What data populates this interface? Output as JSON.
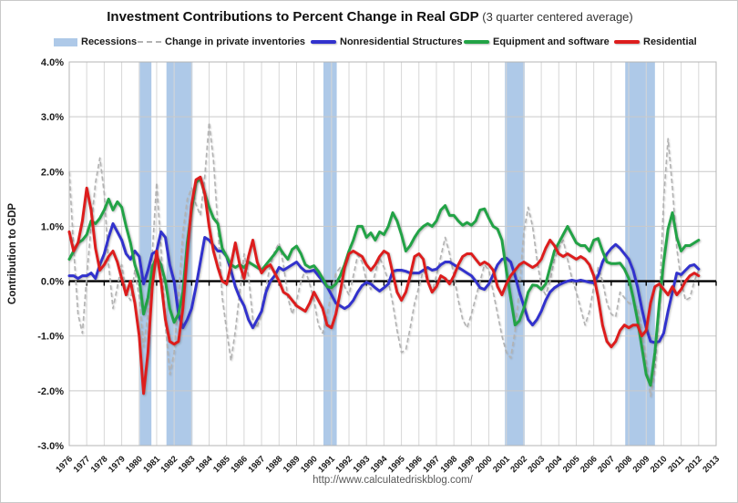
{
  "title": {
    "main": "Investment Contributions to Percent Change in Real GDP",
    "sub": " (3 quarter centered average)"
  },
  "footer": {
    "url": "http://www.calculatedriskblog.com/"
  },
  "colors": {
    "recession_band": "#aec9e8",
    "inventories": "#b3b3b3",
    "nonresidential": "#3232cd",
    "equipment": "#22a346",
    "residential": "#dd1d1d",
    "gridline": "#c9c9c9",
    "zero_line": "#000000"
  },
  "legend": [
    {
      "label": "Recessions",
      "type": "rect",
      "color": "#aec9e8"
    },
    {
      "label": "Change in private inventories",
      "type": "dash",
      "color": "#b3b3b3"
    },
    {
      "label": "Nonresidential Structures",
      "type": "line",
      "color": "#3232cd"
    },
    {
      "label": "Equipment and software",
      "type": "line",
      "color": "#22a346"
    },
    {
      "label": "Residential",
      "type": "line",
      "color": "#dd1d1d"
    }
  ],
  "chart_data": {
    "type": "line",
    "title": "Investment Contributions to Percent Change in Real GDP (3 quarter centered average)",
    "ylabel": "Contribution to GDP",
    "xlabel": "",
    "ylim": [
      -3,
      4
    ],
    "xlim": [
      1976,
      2013
    ],
    "grid": true,
    "legend_position": "top",
    "y_tick_labels": [
      "4.0%",
      "3.0%",
      "2.0%",
      "1.0%",
      "0.0%",
      "-1.0%",
      "-2.0%",
      "-3.0%"
    ],
    "y_tick_values": [
      4,
      3,
      2,
      1,
      0,
      -1,
      -2,
      -3
    ],
    "x_tick_years": [
      1976,
      1977,
      1978,
      1979,
      1980,
      1981,
      1982,
      1983,
      1984,
      1985,
      1986,
      1987,
      1988,
      1989,
      1990,
      1991,
      1992,
      1993,
      1994,
      1995,
      1996,
      1997,
      1998,
      1999,
      2000,
      2001,
      2002,
      2003,
      2004,
      2005,
      2006,
      2007,
      2008,
      2009,
      2010,
      2011,
      2012,
      2013
    ],
    "x_start": 1976.0,
    "x_step": 0.25,
    "recessions": [
      [
        1980.03,
        1980.7
      ],
      [
        1981.56,
        1983.05
      ],
      [
        1990.54,
        1991.3
      ],
      [
        2000.92,
        2002.05
      ],
      [
        2007.8,
        2009.5
      ]
    ],
    "series": [
      {
        "name": "Change in private inventories",
        "color": "#b3b3b3",
        "style": "dashed",
        "width": 1.6,
        "values": [
          2.0,
          0.6,
          -0.6,
          -0.95,
          0.1,
          1.0,
          1.8,
          2.25,
          1.6,
          0.3,
          -0.5,
          -0.1,
          0.3,
          -0.2,
          -0.35,
          0.2,
          -0.3,
          -1.2,
          -0.6,
          0.5,
          1.8,
          0.6,
          -0.8,
          -1.7,
          -1.3,
          -0.3,
          0.9,
          1.5,
          1.7,
          1.4,
          1.2,
          1.9,
          2.9,
          2.2,
          1.0,
          -0.3,
          -0.9,
          -1.45,
          -0.9,
          -0.2,
          0.5,
          0.1,
          -0.7,
          -0.85,
          -0.5,
          -0.1,
          0.3,
          0.55,
          0.7,
          0.3,
          -0.3,
          -0.6,
          -0.35,
          0.0,
          0.2,
          -0.05,
          -0.35,
          -0.8,
          -0.95,
          -0.6,
          -0.2,
          0.15,
          0.25,
          -0.1,
          -0.25,
          0.1,
          0.48,
          0.35,
          0.0,
          -0.15,
          0.15,
          0.43,
          0.25,
          0.0,
          -0.4,
          -0.9,
          -1.3,
          -1.25,
          -0.85,
          -0.4,
          -0.1,
          0.2,
          0.0,
          -0.2,
          0.1,
          0.45,
          0.8,
          0.5,
          0.1,
          -0.35,
          -0.7,
          -0.85,
          -0.6,
          -0.3,
          0.0,
          0.3,
          0.2,
          -0.2,
          -0.6,
          -1.0,
          -1.3,
          -1.4,
          -0.9,
          -0.1,
          0.9,
          1.35,
          1.0,
          0.4,
          -0.1,
          -0.25,
          0.0,
          0.4,
          0.6,
          0.75,
          0.4,
          0.05,
          -0.2,
          -0.5,
          -0.8,
          -0.55,
          -0.1,
          0.25,
          0.0,
          -0.4,
          -0.6,
          -0.65,
          -0.2,
          -0.3,
          -0.4,
          -0.4,
          -0.5,
          -0.9,
          -1.5,
          -2.1,
          -1.6,
          -0.4,
          1.5,
          2.6,
          1.7,
          0.6,
          0.0,
          -0.35,
          -0.3,
          0.0,
          0.2
        ]
      },
      {
        "name": "Nonresidential Structures",
        "color": "#3232cd",
        "style": "solid",
        "width": 3,
        "values": [
          0.1,
          0.1,
          0.05,
          0.1,
          0.1,
          0.15,
          0.05,
          0.3,
          0.5,
          0.8,
          1.05,
          0.9,
          0.75,
          0.5,
          0.4,
          0.55,
          0.45,
          -0.05,
          0.2,
          0.5,
          0.55,
          0.9,
          0.8,
          0.3,
          0.0,
          -0.6,
          -0.85,
          -0.7,
          -0.5,
          -0.1,
          0.35,
          0.8,
          0.75,
          0.65,
          0.55,
          0.55,
          0.45,
          0.2,
          -0.1,
          -0.3,
          -0.45,
          -0.7,
          -0.85,
          -0.7,
          -0.55,
          -0.2,
          0.0,
          0.1,
          0.25,
          0.2,
          0.25,
          0.3,
          0.35,
          0.25,
          0.18,
          0.18,
          0.2,
          0.1,
          0.0,
          -0.1,
          -0.25,
          -0.4,
          -0.45,
          -0.5,
          -0.45,
          -0.35,
          -0.2,
          -0.08,
          -0.02,
          -0.05,
          -0.12,
          -0.18,
          -0.12,
          -0.05,
          0.18,
          0.2,
          0.2,
          0.18,
          0.15,
          0.15,
          0.15,
          0.2,
          0.25,
          0.2,
          0.22,
          0.3,
          0.35,
          0.35,
          0.3,
          0.25,
          0.2,
          0.15,
          0.1,
          0.0,
          -0.12,
          -0.15,
          -0.05,
          0.12,
          0.3,
          0.4,
          0.42,
          0.35,
          0.1,
          -0.2,
          -0.45,
          -0.7,
          -0.8,
          -0.7,
          -0.55,
          -0.35,
          -0.2,
          -0.12,
          -0.07,
          -0.03,
          0.0,
          0.02,
          0.0,
          0.02,
          0.0,
          -0.02,
          -0.03,
          0.1,
          0.35,
          0.5,
          0.6,
          0.67,
          0.6,
          0.5,
          0.4,
          0.2,
          -0.1,
          -0.5,
          -0.85,
          -1.1,
          -1.12,
          -1.1,
          -0.95,
          -0.55,
          -0.2,
          0.15,
          0.12,
          0.2,
          0.28,
          0.3,
          0.22
        ]
      },
      {
        "name": "Equipment and software",
        "color": "#22a346",
        "style": "solid",
        "width": 3,
        "values": [
          0.4,
          0.55,
          0.7,
          0.75,
          0.85,
          1.1,
          1.05,
          1.15,
          1.3,
          1.5,
          1.3,
          1.45,
          1.35,
          1.0,
          0.7,
          0.3,
          0.05,
          -0.6,
          -0.3,
          0.25,
          0.45,
          0.3,
          0.0,
          -0.5,
          -0.75,
          -0.6,
          -0.2,
          0.7,
          1.3,
          1.8,
          1.87,
          1.6,
          1.35,
          1.15,
          1.05,
          0.6,
          0.45,
          0.3,
          0.25,
          0.3,
          0.25,
          0.35,
          0.3,
          0.25,
          0.2,
          0.3,
          0.4,
          0.5,
          0.62,
          0.5,
          0.4,
          0.58,
          0.64,
          0.5,
          0.3,
          0.25,
          0.28,
          0.18,
          0.05,
          -0.1,
          -0.12,
          -0.05,
          0.1,
          0.3,
          0.55,
          0.75,
          1.0,
          1.0,
          0.8,
          0.88,
          0.75,
          0.9,
          0.85,
          1.0,
          1.25,
          1.1,
          0.85,
          0.55,
          0.65,
          0.8,
          0.92,
          1.0,
          1.05,
          1.0,
          1.1,
          1.3,
          1.38,
          1.2,
          1.2,
          1.1,
          1.02,
          1.07,
          1.02,
          1.1,
          1.3,
          1.32,
          1.15,
          1.0,
          0.95,
          0.75,
          0.2,
          -0.3,
          -0.8,
          -0.72,
          -0.5,
          -0.2,
          -0.07,
          -0.08,
          -0.15,
          -0.05,
          0.25,
          0.55,
          0.7,
          0.85,
          1.0,
          0.85,
          0.7,
          0.65,
          0.65,
          0.55,
          0.75,
          0.78,
          0.55,
          0.35,
          0.32,
          0.32,
          0.33,
          0.22,
          0.05,
          -0.3,
          -0.7,
          -1.2,
          -1.7,
          -1.9,
          -1.3,
          -0.4,
          0.35,
          0.95,
          1.25,
          0.8,
          0.55,
          0.65,
          0.65,
          0.7,
          0.75
        ]
      },
      {
        "name": "Residential",
        "color": "#dd1d1d",
        "style": "solid",
        "width": 3,
        "values": [
          0.9,
          0.55,
          0.7,
          1.1,
          1.7,
          1.3,
          0.6,
          0.2,
          0.3,
          0.45,
          0.55,
          0.35,
          0.05,
          -0.25,
          0.0,
          -0.4,
          -1.0,
          -2.05,
          -1.3,
          -0.1,
          0.55,
          0.0,
          -0.7,
          -1.1,
          -1.15,
          -1.1,
          -0.5,
          0.5,
          1.4,
          1.85,
          1.9,
          1.6,
          1.0,
          0.55,
          0.25,
          0.0,
          -0.05,
          0.3,
          0.7,
          0.3,
          0.05,
          0.45,
          0.75,
          0.35,
          0.15,
          0.25,
          0.3,
          0.15,
          0.0,
          -0.2,
          -0.25,
          -0.35,
          -0.45,
          -0.5,
          -0.55,
          -0.4,
          -0.2,
          -0.35,
          -0.5,
          -0.8,
          -0.85,
          -0.6,
          -0.2,
          0.25,
          0.5,
          0.55,
          0.5,
          0.45,
          0.3,
          0.2,
          0.3,
          0.45,
          0.55,
          0.5,
          0.15,
          -0.2,
          -0.35,
          -0.2,
          0.1,
          0.45,
          0.5,
          0.4,
          0.0,
          -0.2,
          -0.1,
          0.1,
          0.05,
          -0.05,
          0.1,
          0.3,
          0.45,
          0.5,
          0.5,
          0.4,
          0.3,
          0.35,
          0.3,
          0.2,
          -0.1,
          -0.25,
          -0.05,
          0.1,
          0.2,
          0.3,
          0.35,
          0.3,
          0.25,
          0.3,
          0.4,
          0.6,
          0.75,
          0.65,
          0.5,
          0.45,
          0.5,
          0.45,
          0.4,
          0.45,
          0.4,
          0.3,
          0.1,
          -0.3,
          -0.8,
          -1.1,
          -1.2,
          -1.1,
          -0.9,
          -0.8,
          -0.85,
          -0.8,
          -0.8,
          -1.0,
          -0.9,
          -0.4,
          -0.1,
          -0.05,
          -0.15,
          -0.25,
          -0.1,
          -0.25,
          -0.15,
          0.0,
          0.1,
          0.15,
          0.1
        ]
      }
    ]
  }
}
